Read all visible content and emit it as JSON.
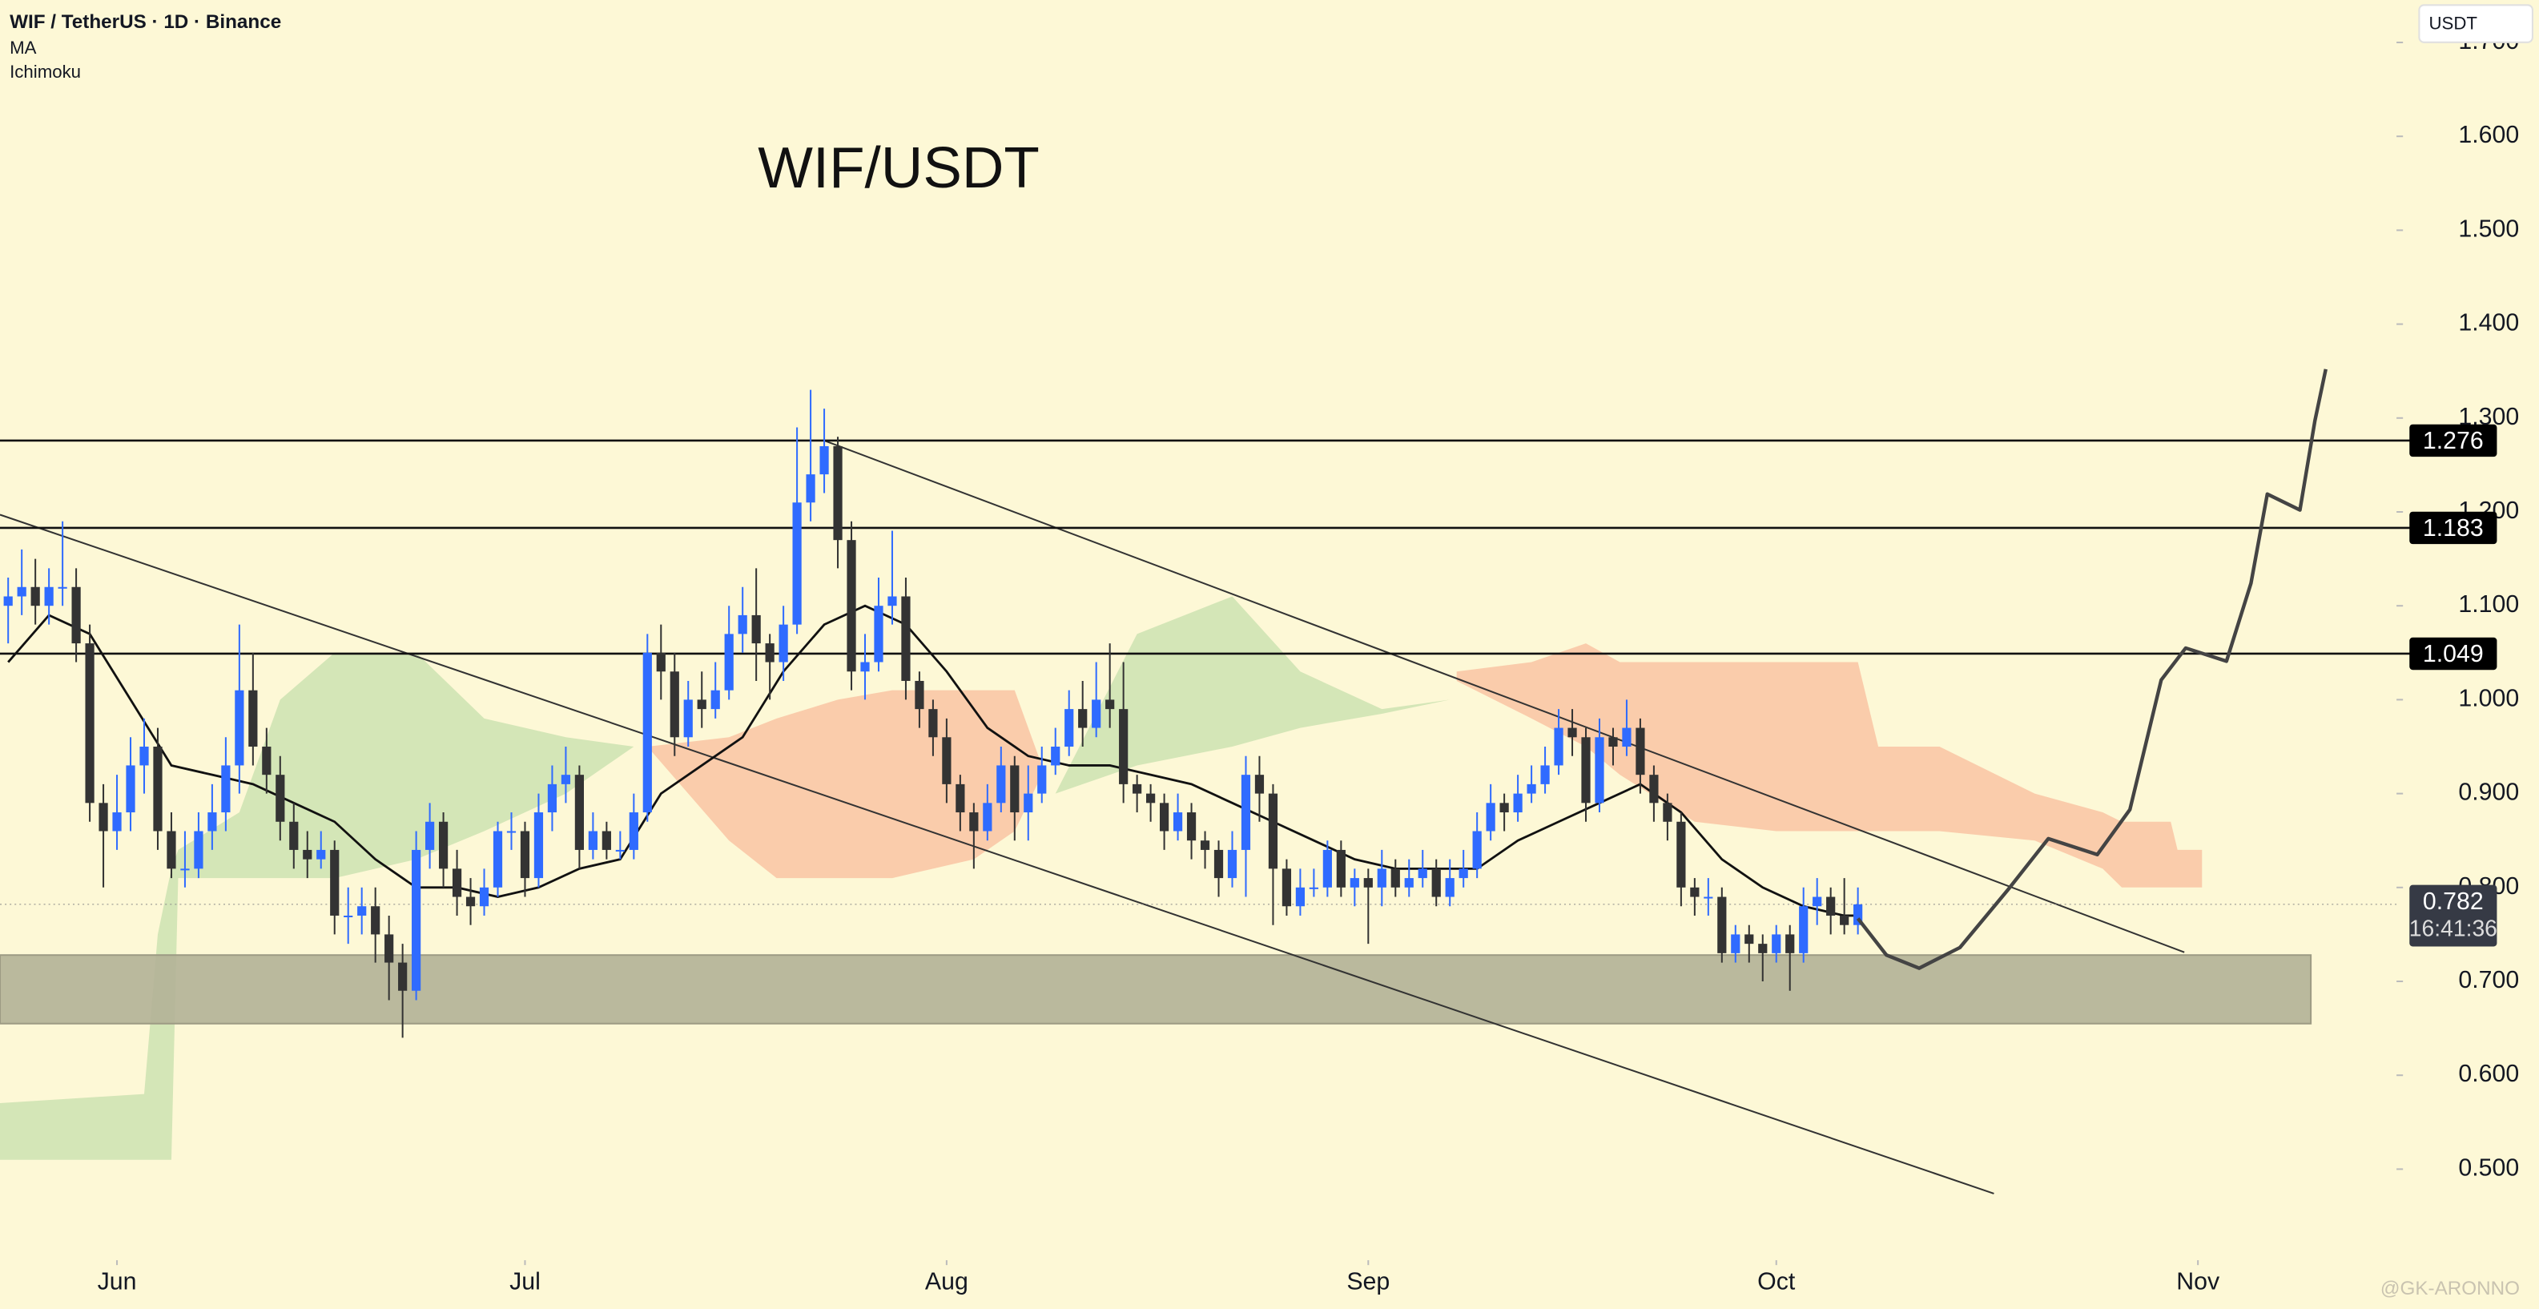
{
  "header": {
    "symbol": "WIF / TetherUS · 1D · Binance",
    "indicators": [
      "MA",
      "Ichimoku"
    ],
    "currency": "USDT"
  },
  "watermark": "@GK-ARONNO",
  "chart_data": {
    "type": "candlestick",
    "title": "WIF/USDT",
    "up_color": "#2f6bff",
    "down_color": "#333333",
    "ohlc": [
      [
        1.1,
        1.13,
        1.06,
        1.11
      ],
      [
        1.11,
        1.16,
        1.09,
        1.12
      ],
      [
        1.12,
        1.15,
        1.08,
        1.1
      ],
      [
        1.1,
        1.14,
        1.08,
        1.12
      ],
      [
        1.12,
        1.19,
        1.1,
        1.12
      ],
      [
        1.12,
        1.14,
        1.04,
        1.06
      ],
      [
        1.06,
        1.08,
        0.87,
        0.89
      ],
      [
        0.89,
        0.91,
        0.8,
        0.86
      ],
      [
        0.86,
        0.92,
        0.84,
        0.88
      ],
      [
        0.88,
        0.96,
        0.86,
        0.93
      ],
      [
        0.93,
        0.98,
        0.9,
        0.95
      ],
      [
        0.95,
        0.97,
        0.84,
        0.86
      ],
      [
        0.86,
        0.88,
        0.81,
        0.82
      ],
      [
        0.82,
        0.86,
        0.8,
        0.82
      ],
      [
        0.82,
        0.88,
        0.81,
        0.86
      ],
      [
        0.86,
        0.91,
        0.84,
        0.88
      ],
      [
        0.88,
        0.96,
        0.86,
        0.93
      ],
      [
        0.93,
        1.08,
        0.9,
        1.01
      ],
      [
        1.01,
        1.05,
        0.93,
        0.95
      ],
      [
        0.95,
        0.97,
        0.9,
        0.92
      ],
      [
        0.92,
        0.94,
        0.85,
        0.87
      ],
      [
        0.87,
        0.89,
        0.82,
        0.84
      ],
      [
        0.84,
        0.86,
        0.81,
        0.83
      ],
      [
        0.83,
        0.86,
        0.82,
        0.84
      ],
      [
        0.84,
        0.85,
        0.75,
        0.77
      ],
      [
        0.77,
        0.8,
        0.74,
        0.77
      ],
      [
        0.77,
        0.8,
        0.75,
        0.78
      ],
      [
        0.78,
        0.8,
        0.72,
        0.75
      ],
      [
        0.75,
        0.77,
        0.68,
        0.72
      ],
      [
        0.72,
        0.74,
        0.64,
        0.69
      ],
      [
        0.69,
        0.86,
        0.68,
        0.84
      ],
      [
        0.84,
        0.89,
        0.82,
        0.87
      ],
      [
        0.87,
        0.88,
        0.8,
        0.82
      ],
      [
        0.82,
        0.84,
        0.77,
        0.79
      ],
      [
        0.79,
        0.81,
        0.76,
        0.78
      ],
      [
        0.78,
        0.82,
        0.77,
        0.8
      ],
      [
        0.8,
        0.87,
        0.79,
        0.86
      ],
      [
        0.86,
        0.88,
        0.84,
        0.86
      ],
      [
        0.86,
        0.87,
        0.79,
        0.81
      ],
      [
        0.81,
        0.9,
        0.8,
        0.88
      ],
      [
        0.88,
        0.93,
        0.86,
        0.91
      ],
      [
        0.91,
        0.95,
        0.89,
        0.92
      ],
      [
        0.92,
        0.93,
        0.82,
        0.84
      ],
      [
        0.84,
        0.88,
        0.83,
        0.86
      ],
      [
        0.86,
        0.87,
        0.83,
        0.84
      ],
      [
        0.84,
        0.86,
        0.83,
        0.84
      ],
      [
        0.84,
        0.9,
        0.83,
        0.88
      ],
      [
        0.88,
        1.07,
        0.87,
        1.05
      ],
      [
        1.05,
        1.08,
        1.0,
        1.03
      ],
      [
        1.03,
        1.05,
        0.94,
        0.96
      ],
      [
        0.96,
        1.02,
        0.95,
        1.0
      ],
      [
        1.0,
        1.03,
        0.97,
        0.99
      ],
      [
        0.99,
        1.04,
        0.98,
        1.01
      ],
      [
        1.01,
        1.1,
        1.0,
        1.07
      ],
      [
        1.07,
        1.12,
        1.05,
        1.09
      ],
      [
        1.09,
        1.14,
        1.02,
        1.06
      ],
      [
        1.06,
        1.07,
        1.0,
        1.04
      ],
      [
        1.04,
        1.1,
        1.02,
        1.08
      ],
      [
        1.08,
        1.29,
        1.07,
        1.21
      ],
      [
        1.21,
        1.33,
        1.19,
        1.24
      ],
      [
        1.24,
        1.31,
        1.22,
        1.27
      ],
      [
        1.27,
        1.28,
        1.14,
        1.17
      ],
      [
        1.17,
        1.19,
        1.01,
        1.03
      ],
      [
        1.03,
        1.07,
        1.0,
        1.04
      ],
      [
        1.04,
        1.13,
        1.03,
        1.1
      ],
      [
        1.1,
        1.18,
        1.08,
        1.11
      ],
      [
        1.11,
        1.13,
        1.0,
        1.02
      ],
      [
        1.02,
        1.03,
        0.97,
        0.99
      ],
      [
        0.99,
        1.0,
        0.94,
        0.96
      ],
      [
        0.96,
        0.98,
        0.89,
        0.91
      ],
      [
        0.91,
        0.92,
        0.86,
        0.88
      ],
      [
        0.88,
        0.89,
        0.82,
        0.86
      ],
      [
        0.86,
        0.91,
        0.85,
        0.89
      ],
      [
        0.89,
        0.95,
        0.88,
        0.93
      ],
      [
        0.93,
        0.94,
        0.85,
        0.88
      ],
      [
        0.88,
        0.93,
        0.85,
        0.9
      ],
      [
        0.9,
        0.95,
        0.89,
        0.93
      ],
      [
        0.93,
        0.97,
        0.92,
        0.95
      ],
      [
        0.95,
        1.01,
        0.94,
        0.99
      ],
      [
        0.99,
        1.02,
        0.95,
        0.97
      ],
      [
        0.97,
        1.04,
        0.96,
        1.0
      ],
      [
        1.0,
        1.06,
        0.97,
        0.99
      ],
      [
        0.99,
        1.04,
        0.89,
        0.91
      ],
      [
        0.91,
        0.92,
        0.88,
        0.9
      ],
      [
        0.9,
        0.91,
        0.87,
        0.89
      ],
      [
        0.89,
        0.9,
        0.84,
        0.86
      ],
      [
        0.86,
        0.9,
        0.85,
        0.88
      ],
      [
        0.88,
        0.89,
        0.83,
        0.85
      ],
      [
        0.85,
        0.86,
        0.82,
        0.84
      ],
      [
        0.84,
        0.85,
        0.79,
        0.81
      ],
      [
        0.81,
        0.86,
        0.8,
        0.84
      ],
      [
        0.84,
        0.94,
        0.79,
        0.92
      ],
      [
        0.92,
        0.94,
        0.87,
        0.9
      ],
      [
        0.9,
        0.91,
        0.76,
        0.82
      ],
      [
        0.82,
        0.83,
        0.77,
        0.78
      ],
      [
        0.78,
        0.82,
        0.77,
        0.8
      ],
      [
        0.8,
        0.82,
        0.79,
        0.8
      ],
      [
        0.8,
        0.85,
        0.79,
        0.84
      ],
      [
        0.84,
        0.85,
        0.79,
        0.8
      ],
      [
        0.8,
        0.82,
        0.78,
        0.81
      ],
      [
        0.81,
        0.82,
        0.74,
        0.8
      ],
      [
        0.8,
        0.84,
        0.78,
        0.82
      ],
      [
        0.82,
        0.83,
        0.79,
        0.8
      ],
      [
        0.8,
        0.83,
        0.79,
        0.81
      ],
      [
        0.81,
        0.84,
        0.8,
        0.82
      ],
      [
        0.82,
        0.83,
        0.78,
        0.79
      ],
      [
        0.79,
        0.83,
        0.78,
        0.81
      ],
      [
        0.81,
        0.84,
        0.8,
        0.82
      ],
      [
        0.82,
        0.88,
        0.81,
        0.86
      ],
      [
        0.86,
        0.91,
        0.85,
        0.89
      ],
      [
        0.89,
        0.9,
        0.86,
        0.88
      ],
      [
        0.88,
        0.92,
        0.87,
        0.9
      ],
      [
        0.9,
        0.93,
        0.89,
        0.91
      ],
      [
        0.91,
        0.95,
        0.9,
        0.93
      ],
      [
        0.93,
        0.99,
        0.92,
        0.97
      ],
      [
        0.97,
        0.99,
        0.94,
        0.96
      ],
      [
        0.96,
        0.97,
        0.87,
        0.89
      ],
      [
        0.89,
        0.98,
        0.88,
        0.96
      ],
      [
        0.96,
        0.97,
        0.93,
        0.95
      ],
      [
        0.95,
        1.0,
        0.94,
        0.97
      ],
      [
        0.97,
        0.98,
        0.9,
        0.92
      ],
      [
        0.92,
        0.93,
        0.87,
        0.89
      ],
      [
        0.89,
        0.9,
        0.85,
        0.87
      ],
      [
        0.87,
        0.88,
        0.78,
        0.8
      ],
      [
        0.8,
        0.81,
        0.77,
        0.79
      ],
      [
        0.79,
        0.81,
        0.77,
        0.79
      ],
      [
        0.79,
        0.8,
        0.72,
        0.73
      ],
      [
        0.73,
        0.76,
        0.72,
        0.75
      ],
      [
        0.75,
        0.76,
        0.72,
        0.74
      ],
      [
        0.74,
        0.75,
        0.7,
        0.73
      ],
      [
        0.73,
        0.76,
        0.72,
        0.75
      ],
      [
        0.75,
        0.76,
        0.69,
        0.73
      ],
      [
        0.73,
        0.8,
        0.72,
        0.78
      ],
      [
        0.78,
        0.81,
        0.76,
        0.79
      ],
      [
        0.79,
        0.8,
        0.75,
        0.77
      ],
      [
        0.77,
        0.81,
        0.75,
        0.76
      ],
      [
        0.76,
        0.8,
        0.75,
        0.782
      ]
    ],
    "ma": {
      "color": "#111111",
      "x": [
        0,
        3,
        6,
        9,
        12,
        15,
        18,
        21,
        24,
        27,
        30,
        33,
        36,
        39,
        42,
        45,
        48,
        51,
        54,
        57,
        60,
        63,
        66,
        69,
        72,
        75,
        78,
        81,
        84,
        87,
        90,
        93,
        96,
        99,
        102,
        105,
        108,
        111,
        114,
        117,
        120,
        123,
        126,
        129,
        132,
        135,
        136
      ],
      "values": [
        1.04,
        1.09,
        1.07,
        1.0,
        0.93,
        0.92,
        0.91,
        0.89,
        0.87,
        0.83,
        0.8,
        0.8,
        0.79,
        0.8,
        0.82,
        0.83,
        0.9,
        0.93,
        0.96,
        1.03,
        1.08,
        1.1,
        1.08,
        1.03,
        0.97,
        0.94,
        0.93,
        0.93,
        0.92,
        0.91,
        0.89,
        0.87,
        0.85,
        0.83,
        0.82,
        0.82,
        0.82,
        0.85,
        0.87,
        0.89,
        0.91,
        0.88,
        0.83,
        0.8,
        0.78,
        0.77,
        0.77
      ]
    },
    "cloud": [
      {
        "color": "#cfe3b4",
        "x": [
          -1,
          10,
          11,
          12,
          12.5,
          17,
          20,
          24,
          30,
          35,
          41,
          46
        ],
        "upper": [
          0.57,
          0.58,
          0.75,
          0.82,
          0.84,
          0.88,
          1.0,
          1.05,
          1.05,
          0.98,
          0.96,
          0.95
        ],
        "lower": [
          0.51,
          0.51,
          0.51,
          0.51,
          0.81,
          0.81,
          0.81,
          0.81,
          0.83,
          0.86,
          0.9,
          0.95
        ]
      },
      {
        "color": "#f9c6a6",
        "x": [
          47,
          53,
          56.5,
          61,
          65,
          71,
          74,
          76
        ],
        "upper": [
          0.95,
          0.96,
          0.98,
          1.0,
          1.01,
          1.01,
          1.01,
          0.93
        ],
        "lower": [
          0.95,
          0.85,
          0.81,
          0.81,
          0.81,
          0.83,
          0.86,
          0.92
        ]
      },
      {
        "color": "#cfe3b4",
        "x": [
          76,
          77,
          83,
          90,
          95,
          101,
          106
        ],
        "upper": [
          0.92,
          0.9,
          1.07,
          1.11,
          1.03,
          0.99,
          1.0
        ],
        "lower": [
          0.92,
          0.9,
          0.93,
          0.95,
          0.97,
          0.985,
          1.0
        ]
      },
      {
        "color": "#f9c6a6",
        "x": [
          106.5,
          112,
          116,
          118.5,
          124,
          130,
          136,
          137.5,
          142,
          149,
          154,
          155.4,
          159,
          159.5,
          161.3
        ],
        "upper": [
          1.03,
          1.04,
          1.06,
          1.04,
          1.04,
          1.04,
          1.04,
          0.95,
          0.95,
          0.9,
          0.88,
          0.87,
          0.87,
          0.84,
          0.84
        ],
        "lower": [
          1.02,
          0.98,
          0.95,
          0.92,
          0.87,
          0.86,
          0.86,
          0.86,
          0.86,
          0.85,
          0.82,
          0.8,
          0.8,
          0.8,
          0.8
        ]
      }
    ],
    "levels": [
      1.276,
      1.183,
      1.049
    ],
    "trendlines": [
      {
        "x": [
          60,
          160
        ],
        "values": [
          1.276,
          0.731
        ]
      },
      {
        "x": [
          -0.6,
          146
        ],
        "values": [
          1.197,
          0.474
        ]
      }
    ],
    "zone": {
      "color": "#b3b197",
      "x": [
        -0.6,
        169.3
      ],
      "values": [
        0.655,
        0.728
      ]
    },
    "projection": {
      "color": "#444444",
      "x": [
        136,
        138.1,
        140.5,
        143.5,
        147,
        150,
        153.6,
        156,
        158.3,
        160.1,
        163.1,
        164.9,
        166.1,
        168.5,
        169.6,
        170.4
      ],
      "values": [
        0.767,
        0.728,
        0.714,
        0.736,
        0.797,
        0.852,
        0.835,
        0.883,
        1.021,
        1.055,
        1.041,
        1.124,
        1.219,
        1.202,
        1.297,
        1.352
      ]
    },
    "last_price": 0.782,
    "countdown": "16:41:36",
    "xlim": [
      -0.6,
      175.6
    ],
    "ylim": [
      0.403,
      1.745
    ],
    "xticks": [
      {
        "value": 8,
        "label": "Jun"
      },
      {
        "value": 38,
        "label": "Jul"
      },
      {
        "value": 69,
        "label": "Aug"
      },
      {
        "value": 100,
        "label": "Sep"
      },
      {
        "value": 130,
        "label": "Oct"
      },
      {
        "value": 161,
        "label": "Nov"
      }
    ],
    "yticks": [
      {
        "value": 0.5,
        "label": "0.500"
      },
      {
        "value": 0.6,
        "label": "0.600"
      },
      {
        "value": 0.7,
        "label": "0.700"
      },
      {
        "value": 0.8,
        "label": "0.800"
      },
      {
        "value": 0.9,
        "label": "0.900"
      },
      {
        "value": 1.0,
        "label": "1.000"
      },
      {
        "value": 1.1,
        "label": "1.100"
      },
      {
        "value": 1.2,
        "label": "1.200"
      },
      {
        "value": 1.3,
        "label": "1.300"
      },
      {
        "value": 1.4,
        "label": "1.400"
      },
      {
        "value": 1.5,
        "label": "1.500"
      },
      {
        "value": 1.6,
        "label": "1.600"
      },
      {
        "value": 1.7,
        "label": "1.700"
      }
    ]
  }
}
